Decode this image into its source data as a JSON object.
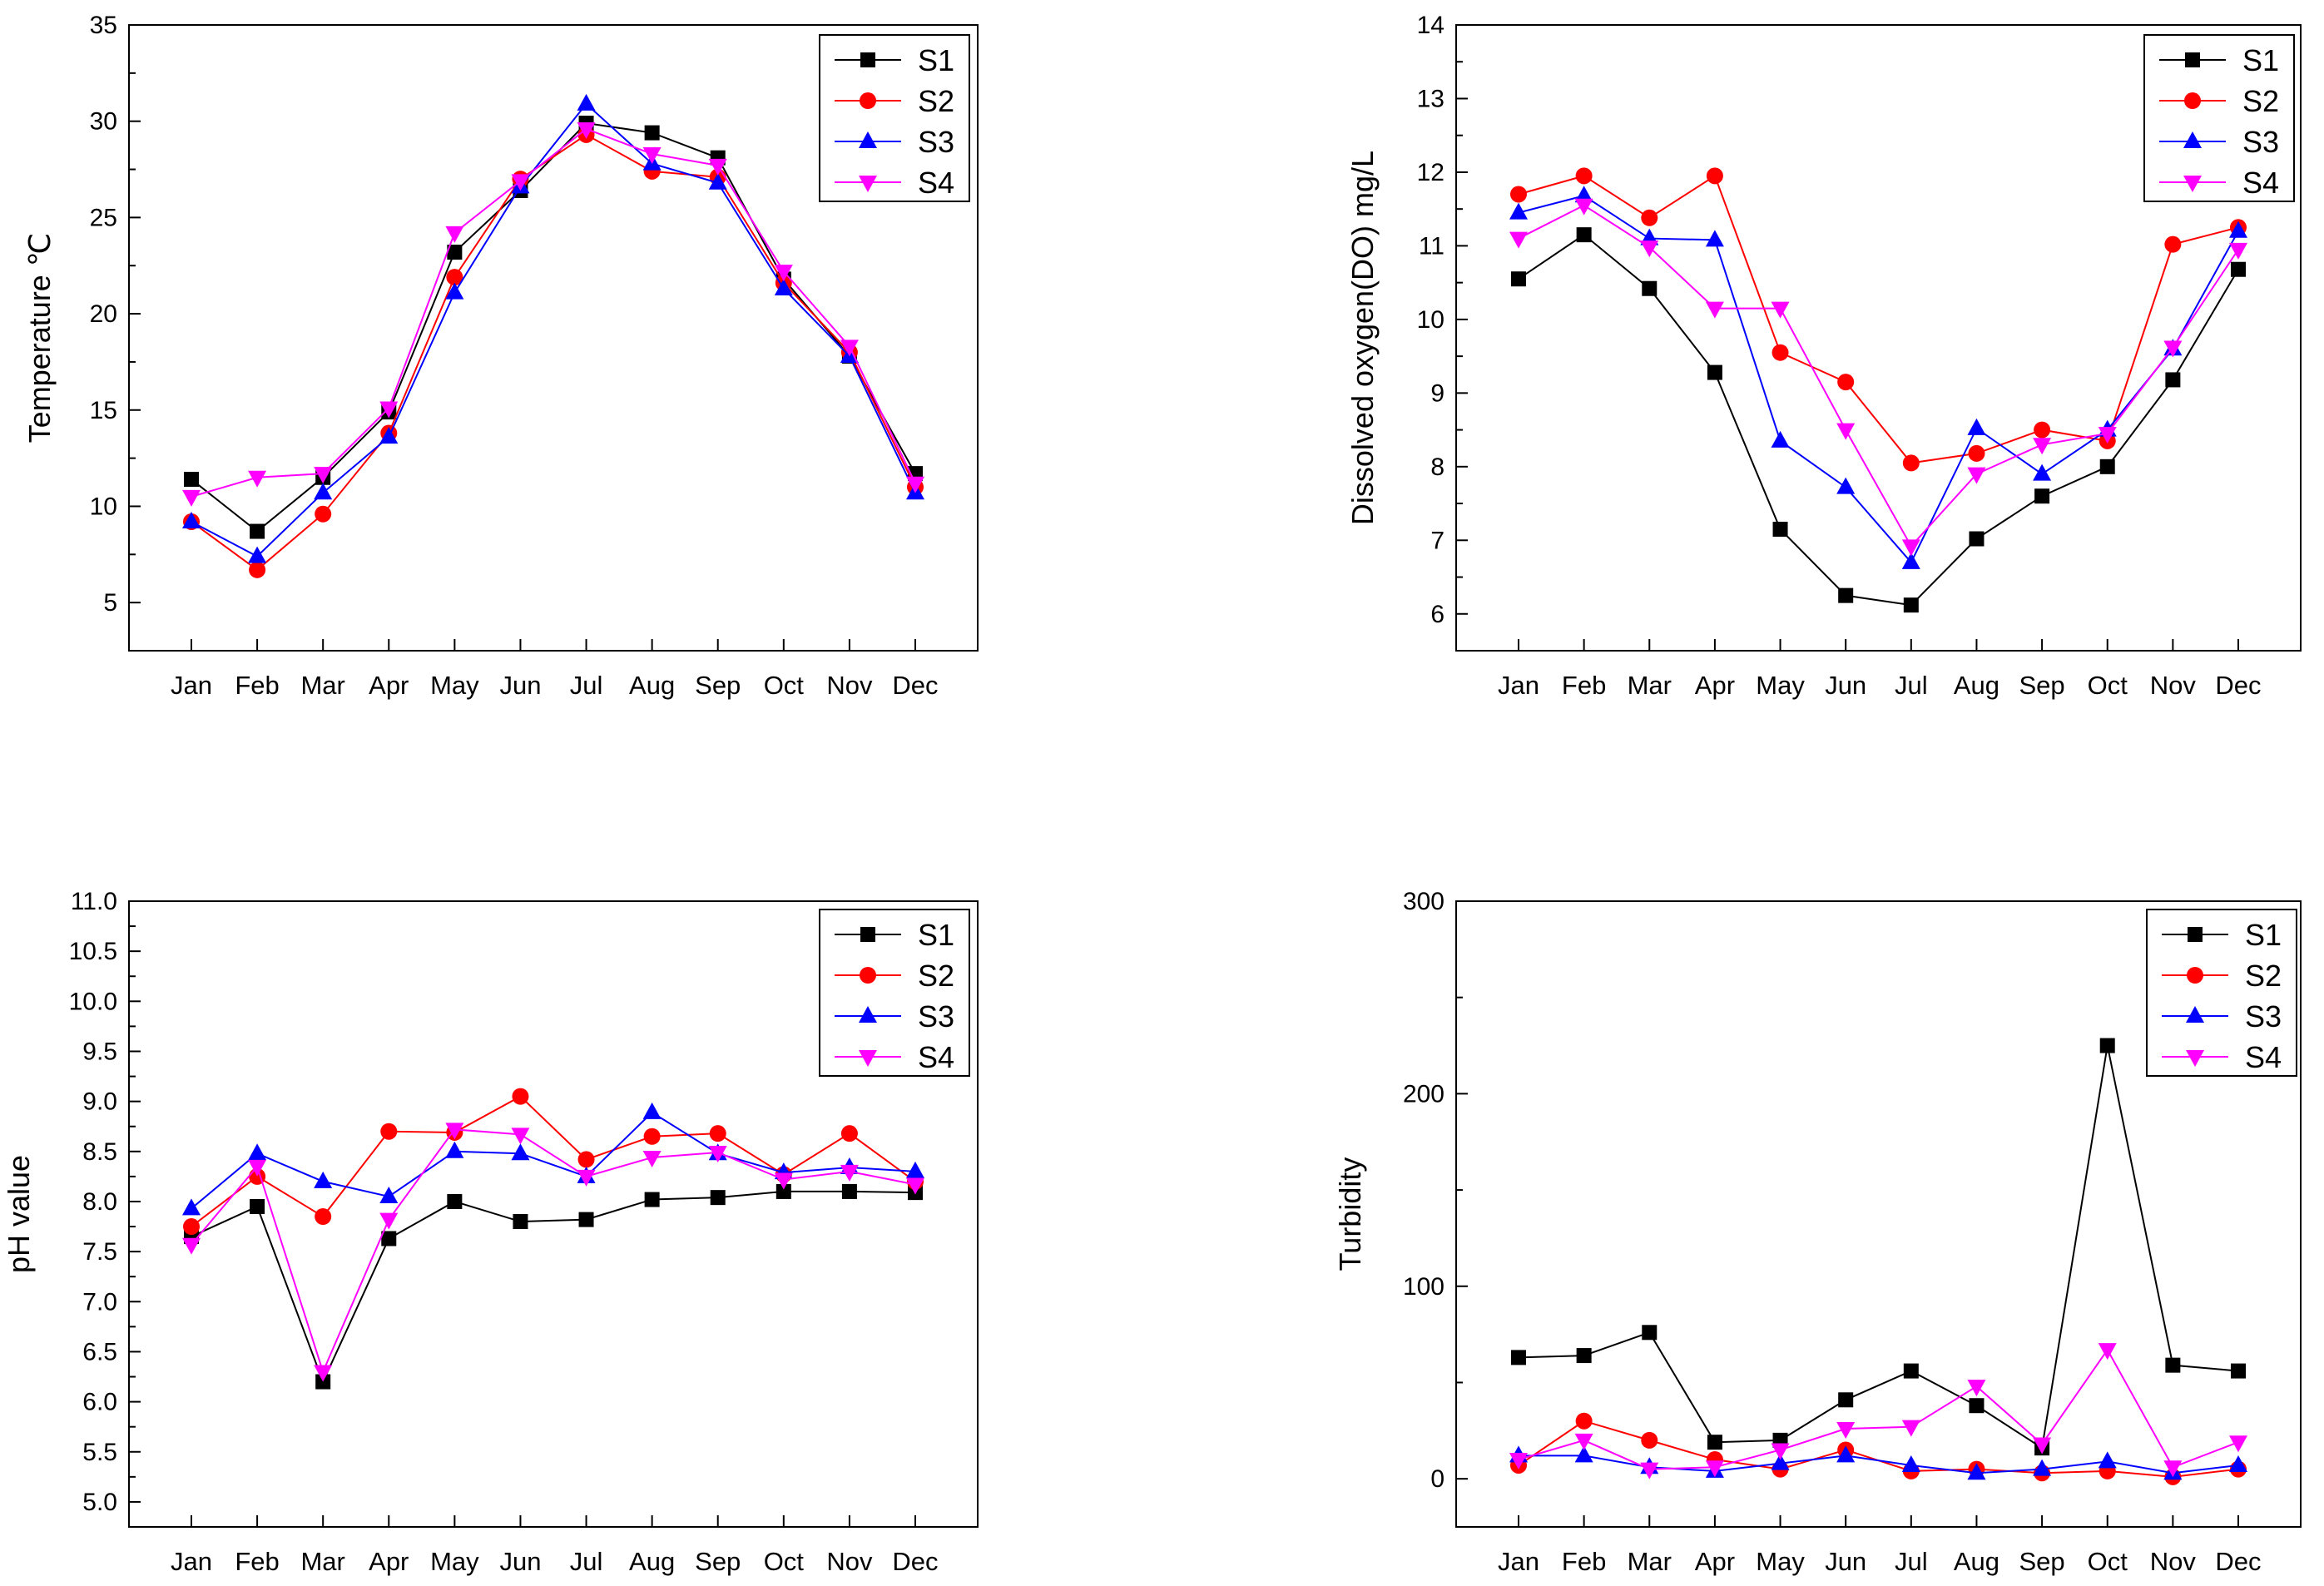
{
  "chart_data": [
    {
      "type": "line",
      "title": "",
      "xlabel": "",
      "ylabel": "Temperature ℃",
      "categories": [
        "Jan",
        "Feb",
        "Mar",
        "Apr",
        "May",
        "Jun",
        "Jul",
        "Aug",
        "Sep",
        "Oct",
        "Nov",
        "Dec"
      ],
      "ylim": [
        2.5,
        35
      ],
      "yticks": [
        5,
        10,
        15,
        20,
        25,
        30,
        35
      ],
      "ytick_labels": [
        "5",
        "10",
        "15",
        "20",
        "25",
        "30",
        "35"
      ],
      "grid": false,
      "legend_position": "top-right",
      "series": [
        {
          "name": "S1",
          "values": [
            11.4,
            8.7,
            11.5,
            14.9,
            23.2,
            26.4,
            29.9,
            29.4,
            28.1,
            21.8,
            17.8,
            11.7
          ]
        },
        {
          "name": "S2",
          "values": [
            9.2,
            6.7,
            9.6,
            13.8,
            21.9,
            27.0,
            29.3,
            27.4,
            27.1,
            21.6,
            18.0,
            11.0
          ]
        },
        {
          "name": "S3",
          "values": [
            9.2,
            7.4,
            10.7,
            13.6,
            21.1,
            26.6,
            30.9,
            27.8,
            26.8,
            21.3,
            17.8,
            10.7
          ]
        },
        {
          "name": "S4",
          "values": [
            10.5,
            11.5,
            11.7,
            15.1,
            24.2,
            26.9,
            29.6,
            28.3,
            27.7,
            22.2,
            18.3,
            11.2
          ]
        }
      ]
    },
    {
      "type": "line",
      "title": "",
      "xlabel": "",
      "ylabel": "Dissolved oxygen(DO) mg/L",
      "categories": [
        "Jan",
        "Feb",
        "Mar",
        "Apr",
        "May",
        "Jun",
        "Jul",
        "Aug",
        "Sep",
        "Oct",
        "Nov",
        "Dec"
      ],
      "ylim": [
        5.5,
        14
      ],
      "yticks": [
        6,
        7,
        8,
        9,
        10,
        11,
        12,
        13,
        14
      ],
      "ytick_labels": [
        "6",
        "7",
        "8",
        "9",
        "10",
        "11",
        "12",
        "13",
        "14"
      ],
      "grid": false,
      "legend_position": "top-right",
      "series": [
        {
          "name": "S1",
          "values": [
            10.55,
            11.15,
            10.42,
            9.28,
            7.15,
            6.25,
            6.12,
            7.02,
            7.6,
            8.0,
            9.18,
            10.68
          ]
        },
        {
          "name": "S2",
          "values": [
            11.7,
            11.95,
            11.38,
            11.95,
            9.55,
            9.15,
            8.05,
            8.18,
            8.5,
            8.35,
            11.02,
            11.25
          ]
        },
        {
          "name": "S3",
          "values": [
            11.45,
            11.68,
            11.1,
            11.08,
            8.35,
            7.72,
            6.7,
            8.52,
            7.9,
            8.5,
            9.6,
            11.2
          ]
        },
        {
          "name": "S4",
          "values": [
            11.1,
            11.55,
            10.98,
            10.15,
            10.15,
            8.5,
            6.92,
            7.9,
            8.3,
            8.45,
            9.62,
            10.95
          ]
        }
      ]
    },
    {
      "type": "line",
      "title": "",
      "xlabel": "",
      "ylabel": "pH value",
      "categories": [
        "Jan",
        "Feb",
        "Mar",
        "Apr",
        "May",
        "Jun",
        "Jul",
        "Aug",
        "Sep",
        "Oct",
        "Nov",
        "Dec"
      ],
      "ylim": [
        4.75,
        11.0
      ],
      "yticks": [
        5.0,
        5.5,
        6.0,
        6.5,
        7.0,
        7.5,
        8.0,
        8.5,
        9.0,
        9.5,
        10.0,
        10.5,
        11.0
      ],
      "ytick_labels": [
        "5.0",
        "5.5",
        "6.0",
        "6.5",
        "7.0",
        "7.5",
        "8.0",
        "8.5",
        "9.0",
        "9.5",
        "10.0",
        "10.5",
        "11.0"
      ],
      "grid": false,
      "legend_position": "top-right",
      "series": [
        {
          "name": "S1",
          "values": [
            7.65,
            7.95,
            6.2,
            7.63,
            8.0,
            7.8,
            7.82,
            8.02,
            8.04,
            8.1,
            8.1,
            8.09
          ]
        },
        {
          "name": "S2",
          "values": [
            7.75,
            8.25,
            7.85,
            8.7,
            8.69,
            9.05,
            8.42,
            8.65,
            8.68,
            8.27,
            8.68,
            8.2
          ]
        },
        {
          "name": "S3",
          "values": [
            7.93,
            8.48,
            8.2,
            8.05,
            8.5,
            8.48,
            8.25,
            8.89,
            8.48,
            8.29,
            8.34,
            8.3
          ]
        },
        {
          "name": "S4",
          "values": [
            7.57,
            8.35,
            6.3,
            7.82,
            8.72,
            8.67,
            8.25,
            8.44,
            8.49,
            8.22,
            8.3,
            8.17
          ]
        }
      ]
    },
    {
      "type": "line",
      "title": "",
      "xlabel": "",
      "ylabel": "Turbidity",
      "categories": [
        "Jan",
        "Feb",
        "Mar",
        "Apr",
        "May",
        "Jun",
        "Jul",
        "Aug",
        "Sep",
        "Oct",
        "Nov",
        "Dec"
      ],
      "ylim": [
        -25,
        300
      ],
      "yticks": [
        0,
        100,
        200,
        300
      ],
      "ytick_labels": [
        "0",
        "100",
        "200",
        "300"
      ],
      "grid": false,
      "legend_position": "top-right",
      "series": [
        {
          "name": "S1",
          "values": [
            63,
            64,
            76,
            19,
            20,
            41,
            56,
            38,
            16,
            225,
            59,
            56
          ]
        },
        {
          "name": "S2",
          "values": [
            7,
            30,
            20,
            10,
            5,
            15,
            4,
            5,
            3,
            4,
            1,
            5
          ]
        },
        {
          "name": "S3",
          "values": [
            12,
            12,
            6,
            4,
            8,
            12,
            7,
            3,
            5,
            9,
            3,
            7
          ]
        },
        {
          "name": "S4",
          "values": [
            10,
            20,
            5,
            6,
            15,
            26,
            27,
            48,
            18,
            67,
            6,
            19
          ]
        }
      ]
    }
  ],
  "legend_style": [
    {
      "name": "S1",
      "color": "#000000",
      "marker": "square"
    },
    {
      "name": "S2",
      "color": "#ff0000",
      "marker": "circle"
    },
    {
      "name": "S3",
      "color": "#0000ff",
      "marker": "triangle-up"
    },
    {
      "name": "S4",
      "color": "#ff00ff",
      "marker": "triangle-down"
    }
  ]
}
